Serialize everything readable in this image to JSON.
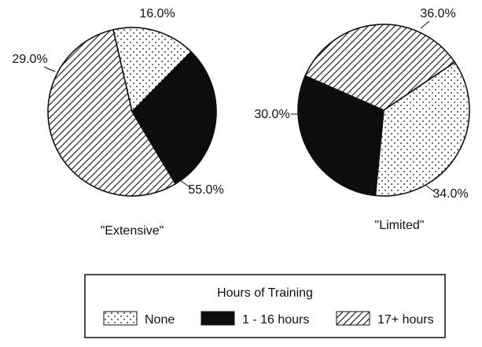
{
  "chart_data": [
    {
      "type": "pie",
      "title": "\"Extensive\"",
      "categories": [
        "None",
        "1 - 16 hours",
        "17+ hours"
      ],
      "values": [
        16.0,
        29.0,
        55.0
      ],
      "labels": [
        "16.0%",
        "29.0%",
        "55.0%"
      ]
    },
    {
      "type": "pie",
      "title": "\"Limited\"",
      "categories": [
        "None",
        "1 - 16 hours",
        "17+ hours"
      ],
      "values": [
        36.0,
        30.0,
        34.0
      ],
      "labels": [
        "36.0%",
        "30.0%",
        "34.0%"
      ]
    }
  ],
  "legend": {
    "title": "Hours of Training",
    "placement": "bottom",
    "items": [
      {
        "label": "None",
        "pattern": "dots"
      },
      {
        "label": "1 - 16 hours",
        "pattern": "solid"
      },
      {
        "label": "17+ hours",
        "pattern": "hatch"
      }
    ]
  }
}
